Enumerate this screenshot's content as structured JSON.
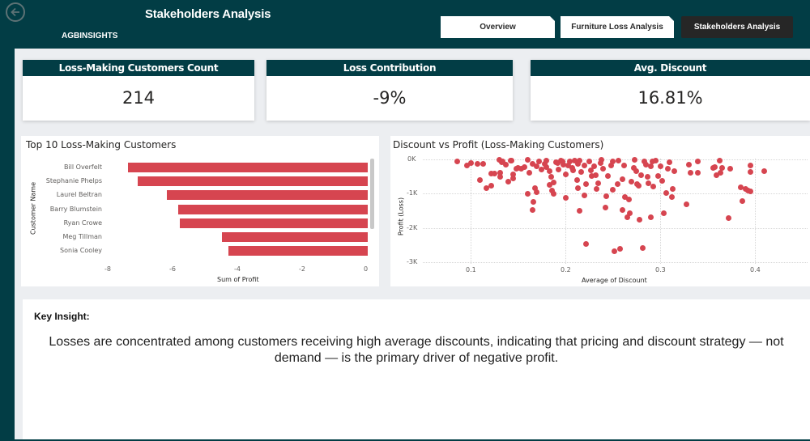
{
  "header": {
    "title": "Stakeholders Analysis",
    "brand": "AGBINSIGHTS",
    "back_icon": "arrow-left-circle-icon"
  },
  "nav": {
    "tabs": [
      {
        "label": "Overview",
        "active": false
      },
      {
        "label": "Furniture Loss Analysis",
        "active": false
      },
      {
        "label": "Stakeholders Analysis",
        "active": true
      }
    ]
  },
  "kpis": [
    {
      "label": "Loss-Making Customers Count",
      "value": "214"
    },
    {
      "label": "Loss Contribution",
      "value": "-9%"
    },
    {
      "label": "Avg. Discount",
      "value": "16.81%"
    }
  ],
  "colors": {
    "brand_dark": "#023d45",
    "bar_red": "#d64550",
    "active_tab": "#262626",
    "canvas_bg": "#eceef1"
  },
  "chart_data": [
    {
      "type": "bar",
      "orientation": "horizontal",
      "title": "Top 10 Loss-Making Customers",
      "xlabel": "Sum of Profit",
      "ylabel": "Customer Name",
      "categories": [
        "Bill Overfelt",
        "Stephanie Phelps",
        "Laurel Beltran",
        "Barry Blumstein",
        "Ryan Crowe",
        "Meg Tillman",
        "Sonia Cooley"
      ],
      "values": [
        -7.4,
        -7.1,
        -6.2,
        -5.85,
        -5.8,
        -4.5,
        -4.3
      ],
      "xlim": [
        -8,
        0
      ],
      "xticks": [
        "-8",
        "-6",
        "-4",
        "-2",
        "0"
      ],
      "scrollable": true
    },
    {
      "type": "scatter",
      "title": "Discount vs Profit (Loss-Making Customers)",
      "xlabel": "Average of Discount",
      "ylabel": "Profit (Loss)",
      "xticks": [
        "0.1",
        "0.2",
        "0.3",
        "0.4"
      ],
      "yticks": [
        "0K",
        "-1K",
        "-2K",
        "-3K"
      ],
      "xlim": [
        0.05,
        0.45
      ],
      "ylim": [
        -3000,
        0
      ],
      "grid": true,
      "points": [
        [
          0.086,
          -50
        ],
        [
          0.096,
          -180
        ],
        [
          0.1,
          -100
        ],
        [
          0.107,
          -120
        ],
        [
          0.113,
          -120
        ],
        [
          0.11,
          -600
        ],
        [
          0.117,
          -830
        ],
        [
          0.122,
          -420
        ],
        [
          0.125,
          -420
        ],
        [
          0.122,
          -760
        ],
        [
          0.13,
          -20
        ],
        [
          0.133,
          -80
        ],
        [
          0.134,
          -60
        ],
        [
          0.131,
          -380
        ],
        [
          0.131,
          -500
        ],
        [
          0.137,
          -150
        ],
        [
          0.142,
          -30
        ],
        [
          0.143,
          -30
        ],
        [
          0.14,
          -640
        ],
        [
          0.145,
          -560
        ],
        [
          0.145,
          -430
        ],
        [
          0.148,
          -280
        ],
        [
          0.15,
          -250
        ],
        [
          0.153,
          -280
        ],
        [
          0.157,
          -220
        ],
        [
          0.16,
          -20
        ],
        [
          0.16,
          -1000
        ],
        [
          0.162,
          -380
        ],
        [
          0.165,
          -130
        ],
        [
          0.165,
          -1480
        ],
        [
          0.166,
          -1230
        ],
        [
          0.168,
          -850
        ],
        [
          0.17,
          -200
        ],
        [
          0.17,
          -960
        ],
        [
          0.172,
          -70
        ],
        [
          0.175,
          -300
        ],
        [
          0.178,
          -120
        ],
        [
          0.18,
          -40
        ],
        [
          0.18,
          -230
        ],
        [
          0.183,
          -750
        ],
        [
          0.183,
          -340
        ],
        [
          0.185,
          -500
        ],
        [
          0.186,
          -900
        ],
        [
          0.188,
          -680
        ],
        [
          0.188,
          -1000
        ],
        [
          0.19,
          -90
        ],
        [
          0.192,
          -100
        ],
        [
          0.193,
          -300
        ],
        [
          0.195,
          -30
        ],
        [
          0.197,
          -60
        ],
        [
          0.198,
          -150
        ],
        [
          0.2,
          -430
        ],
        [
          0.2,
          -1130
        ],
        [
          0.203,
          -170
        ],
        [
          0.205,
          -60
        ],
        [
          0.207,
          -250
        ],
        [
          0.208,
          -330
        ],
        [
          0.21,
          -40
        ],
        [
          0.212,
          -600
        ],
        [
          0.213,
          -120
        ],
        [
          0.213,
          -840
        ],
        [
          0.215,
          -1500
        ],
        [
          0.215,
          -40
        ],
        [
          0.217,
          -360
        ],
        [
          0.22,
          -1050
        ],
        [
          0.22,
          -170
        ],
        [
          0.222,
          -2460
        ],
        [
          0.222,
          -720
        ],
        [
          0.225,
          -60
        ],
        [
          0.227,
          -320
        ],
        [
          0.228,
          -480
        ],
        [
          0.23,
          -200
        ],
        [
          0.232,
          -450
        ],
        [
          0.233,
          -870
        ],
        [
          0.235,
          -690
        ],
        [
          0.237,
          -100
        ],
        [
          0.238,
          -20
        ],
        [
          0.24,
          -280
        ],
        [
          0.242,
          -1400
        ],
        [
          0.243,
          -1080
        ],
        [
          0.245,
          -480
        ],
        [
          0.248,
          -180
        ],
        [
          0.25,
          -50
        ],
        [
          0.25,
          -880
        ],
        [
          0.252,
          -2680
        ],
        [
          0.255,
          -720
        ],
        [
          0.256,
          -30
        ],
        [
          0.258,
          -2610
        ],
        [
          0.26,
          -1480
        ],
        [
          0.26,
          -580
        ],
        [
          0.262,
          -180
        ],
        [
          0.263,
          -1100
        ],
        [
          0.265,
          -1700
        ],
        [
          0.267,
          -1160
        ],
        [
          0.268,
          -1570
        ],
        [
          0.27,
          -640
        ],
        [
          0.272,
          -240
        ],
        [
          0.273,
          -20
        ],
        [
          0.275,
          -350
        ],
        [
          0.276,
          -720
        ],
        [
          0.277,
          -780
        ],
        [
          0.278,
          -1760
        ],
        [
          0.28,
          -470
        ],
        [
          0.282,
          -2600
        ],
        [
          0.283,
          -50
        ],
        [
          0.285,
          -150
        ],
        [
          0.287,
          -520
        ],
        [
          0.288,
          -700
        ],
        [
          0.29,
          -200
        ],
        [
          0.29,
          -1690
        ],
        [
          0.292,
          -50
        ],
        [
          0.293,
          -800
        ],
        [
          0.295,
          -30
        ],
        [
          0.298,
          -480
        ],
        [
          0.3,
          -200
        ],
        [
          0.302,
          -620
        ],
        [
          0.304,
          -1570
        ],
        [
          0.306,
          -990
        ],
        [
          0.308,
          -270
        ],
        [
          0.31,
          -80
        ],
        [
          0.312,
          -1100
        ],
        [
          0.313,
          -860
        ],
        [
          0.315,
          -350
        ],
        [
          0.328,
          -1320
        ],
        [
          0.33,
          -150
        ],
        [
          0.332,
          -380
        ],
        [
          0.34,
          -50
        ],
        [
          0.34,
          -400
        ],
        [
          0.356,
          -260
        ],
        [
          0.358,
          -230
        ],
        [
          0.359,
          -470
        ],
        [
          0.363,
          -40
        ],
        [
          0.364,
          -380
        ],
        [
          0.365,
          -260
        ],
        [
          0.372,
          -1720
        ],
        [
          0.374,
          -280
        ],
        [
          0.385,
          -810
        ],
        [
          0.387,
          -1210
        ],
        [
          0.39,
          -860
        ],
        [
          0.393,
          -900
        ],
        [
          0.395,
          -360
        ],
        [
          0.395,
          -180
        ],
        [
          0.395,
          -940
        ],
        [
          0.41,
          -340
        ]
      ]
    }
  ],
  "insight": {
    "label": "Key Insight:",
    "text": "Losses are concentrated among customers receiving high average discounts, indicating that pricing and discount strategy — not demand — is the primary driver of negative profit."
  }
}
